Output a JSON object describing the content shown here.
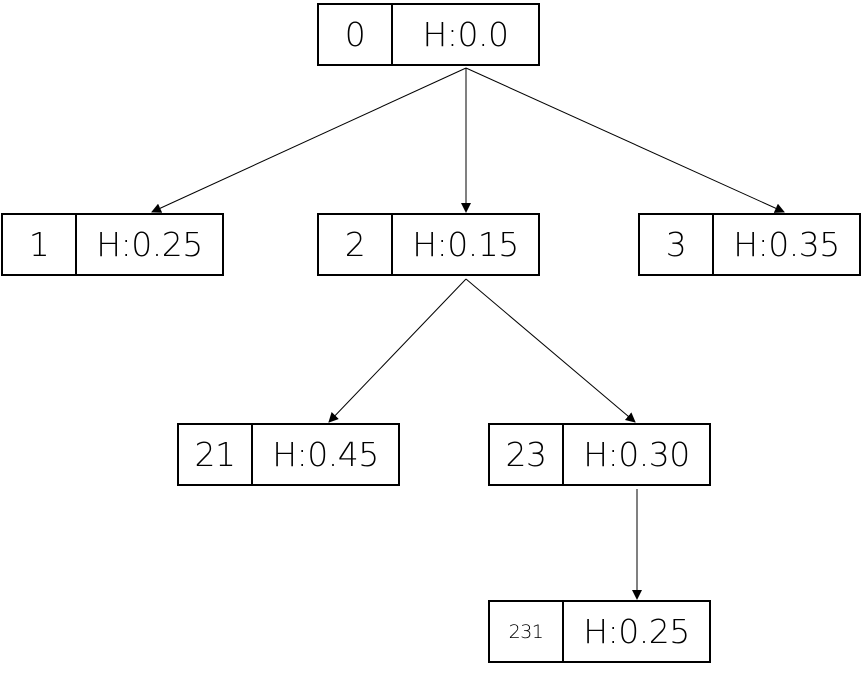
{
  "nodes": {
    "n0": {
      "id": "0",
      "h": "H:0.0"
    },
    "n1": {
      "id": "1",
      "h": "H:0.25"
    },
    "n2": {
      "id": "2",
      "h": "H:0.15"
    },
    "n3": {
      "id": "3",
      "h": "H:0.35"
    },
    "n21": {
      "id": "21",
      "h": "H:0.45"
    },
    "n23": {
      "id": "23",
      "h": "H:0.30"
    },
    "n231": {
      "id": "231",
      "h": "H:0.25"
    }
  },
  "edges": [
    {
      "from": "0",
      "to": "1"
    },
    {
      "from": "0",
      "to": "2"
    },
    {
      "from": "0",
      "to": "3"
    },
    {
      "from": "2",
      "to": "21"
    },
    {
      "from": "2",
      "to": "23"
    },
    {
      "from": "23",
      "to": "231"
    }
  ],
  "colors": {
    "stroke": "#000000",
    "background": "#ffffff"
  }
}
